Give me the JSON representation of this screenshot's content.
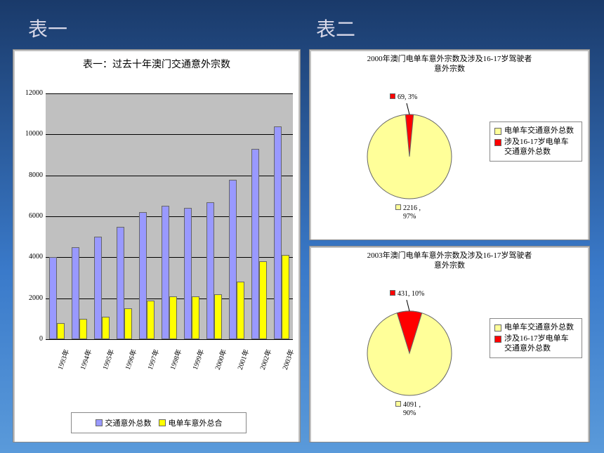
{
  "header": {
    "label1": "表一",
    "label2": "表二"
  },
  "bar_chart": {
    "type": "bar",
    "title": "表一：过去十年澳门交通意外宗数",
    "categories": [
      "1993年",
      "1994年",
      "1995年",
      "1996年",
      "1997年",
      "1998年",
      "1999年",
      "2000年",
      "2001年",
      "2002年",
      "2003年"
    ],
    "series": [
      {
        "name": "交通意外总数",
        "color": "#9999ff",
        "values": [
          4000,
          4500,
          5000,
          5500,
          6200,
          6500,
          6400,
          6700,
          7800,
          9300,
          10400
        ]
      },
      {
        "name": "电单车意外总合",
        "color": "#ffff00",
        "values": [
          800,
          1000,
          1100,
          1500,
          1900,
          2100,
          2100,
          2200,
          2800,
          3800,
          4100
        ]
      }
    ],
    "ylim": [
      0,
      12000
    ],
    "ytick_step": 2000,
    "background_color": "#c0c0c0",
    "grid_color": "#000000",
    "bar_group_width": 0.7,
    "title_fontsize": 14,
    "label_fontsize": 10
  },
  "pie_chart_2000": {
    "type": "pie",
    "title_line1": "2000年澳门电单车意外宗数及涉及16-17岁驾驶者",
    "title_line2": "意外宗数",
    "slices": [
      {
        "name": "电单车交通意外总数",
        "value": 2216,
        "pct": "97%",
        "label": "2216  ,\n97%",
        "color": "#ffff99"
      },
      {
        "name": "涉及16-17岁电单车\n交通意外总数",
        "value": 69,
        "pct": "3%",
        "label": "69, 3%",
        "color": "#ff0000"
      }
    ],
    "background_color": "#ffffff",
    "title_fontsize": 11
  },
  "pie_chart_2003": {
    "type": "pie",
    "title_line1": "2003年澳门电单车意外宗数及涉及16-17岁驾驶者",
    "title_line2": "意外宗数",
    "slices": [
      {
        "name": "电单车交通意外总数",
        "value": 4091,
        "pct": "90%",
        "label": "4091  ,\n90%",
        "color": "#ffff99"
      },
      {
        "name": "涉及16-17岁电单车\n交通意外总数",
        "value": 431,
        "pct": "10%",
        "label": "431, 10%",
        "color": "#ff0000"
      }
    ],
    "background_color": "#ffffff",
    "title_fontsize": 11
  },
  "colors": {
    "panel_bg": "#c0c0c0",
    "slide_bg_top": "#1a3a6a",
    "slide_bg_bottom": "#5a9ada",
    "header_text": "#d8d8e8"
  }
}
